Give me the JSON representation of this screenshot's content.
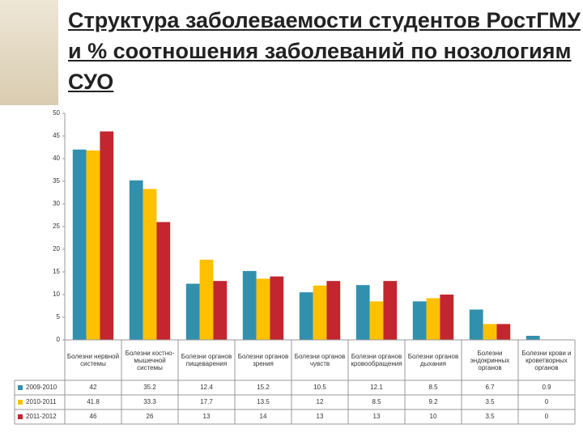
{
  "chart_data": {
    "type": "bar",
    "title": "Структура заболеваемости студентов РостГМУ и % соотношения заболеваний по нозологиям СУО",
    "categories": [
      "Болезни нервной системы",
      "Болезни костно-мышечной системы",
      "Болезни органов пищеварения",
      "Болезни органов зрения",
      "Болезни органов чувств",
      "Болезни органов кровообращения",
      "Болезни органов дыхания",
      "Болезни эндокринных органов",
      "Болезни крови и кроветворных органов"
    ],
    "series": [
      {
        "name": "2009-2010",
        "color": "#3190ad",
        "values": [
          42,
          35.2,
          12.4,
          15.2,
          10.5,
          12.1,
          8.5,
          6.7,
          0.9
        ]
      },
      {
        "name": "2010-2011",
        "color": "#ffc000",
        "values": [
          41.8,
          33.3,
          17.7,
          13.5,
          12,
          8.5,
          9.2,
          3.5,
          0
        ]
      },
      {
        "name": "2011-2012",
        "color": "#c3262e",
        "values": [
          46,
          26,
          13,
          14,
          13,
          13,
          10,
          3.5,
          0
        ]
      }
    ],
    "ylim": [
      0,
      50
    ],
    "yticks": [
      0,
      5,
      10,
      15,
      20,
      25,
      30,
      35,
      40,
      45,
      50
    ],
    "grid": false
  }
}
